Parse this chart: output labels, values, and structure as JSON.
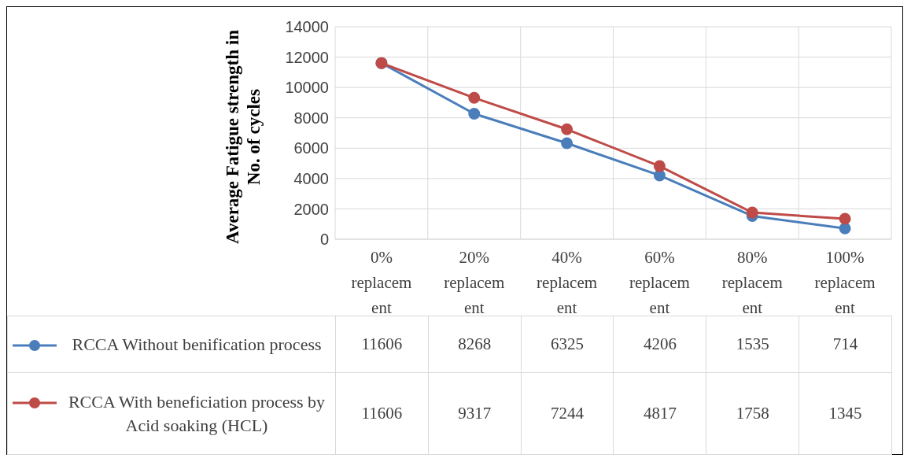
{
  "chart_data": {
    "type": "line",
    "ylabel": "Average Fatigue strength in No. of cycles",
    "categories": [
      "0% replacement",
      "20% replacement",
      "40% replacement",
      "60% replacement",
      "80% replacement",
      "100% replacement"
    ],
    "series": [
      {
        "name": "RCCA Without benification process",
        "color": "#4a7ebb",
        "values": [
          11606,
          8268,
          6325,
          4206,
          1535,
          714
        ]
      },
      {
        "name": "RCCA With beneficiation process by Acid soaking (HCL)",
        "color": "#be4b48",
        "values": [
          11606,
          9317,
          7244,
          4817,
          1758,
          1345
        ]
      }
    ],
    "ylim": [
      0,
      14000
    ],
    "yticks": [
      0,
      2000,
      4000,
      6000,
      8000,
      10000,
      12000,
      14000
    ],
    "grid": true,
    "legend": "bottom",
    "marker": "circle",
    "line_style": "solid",
    "data_labels": true
  }
}
